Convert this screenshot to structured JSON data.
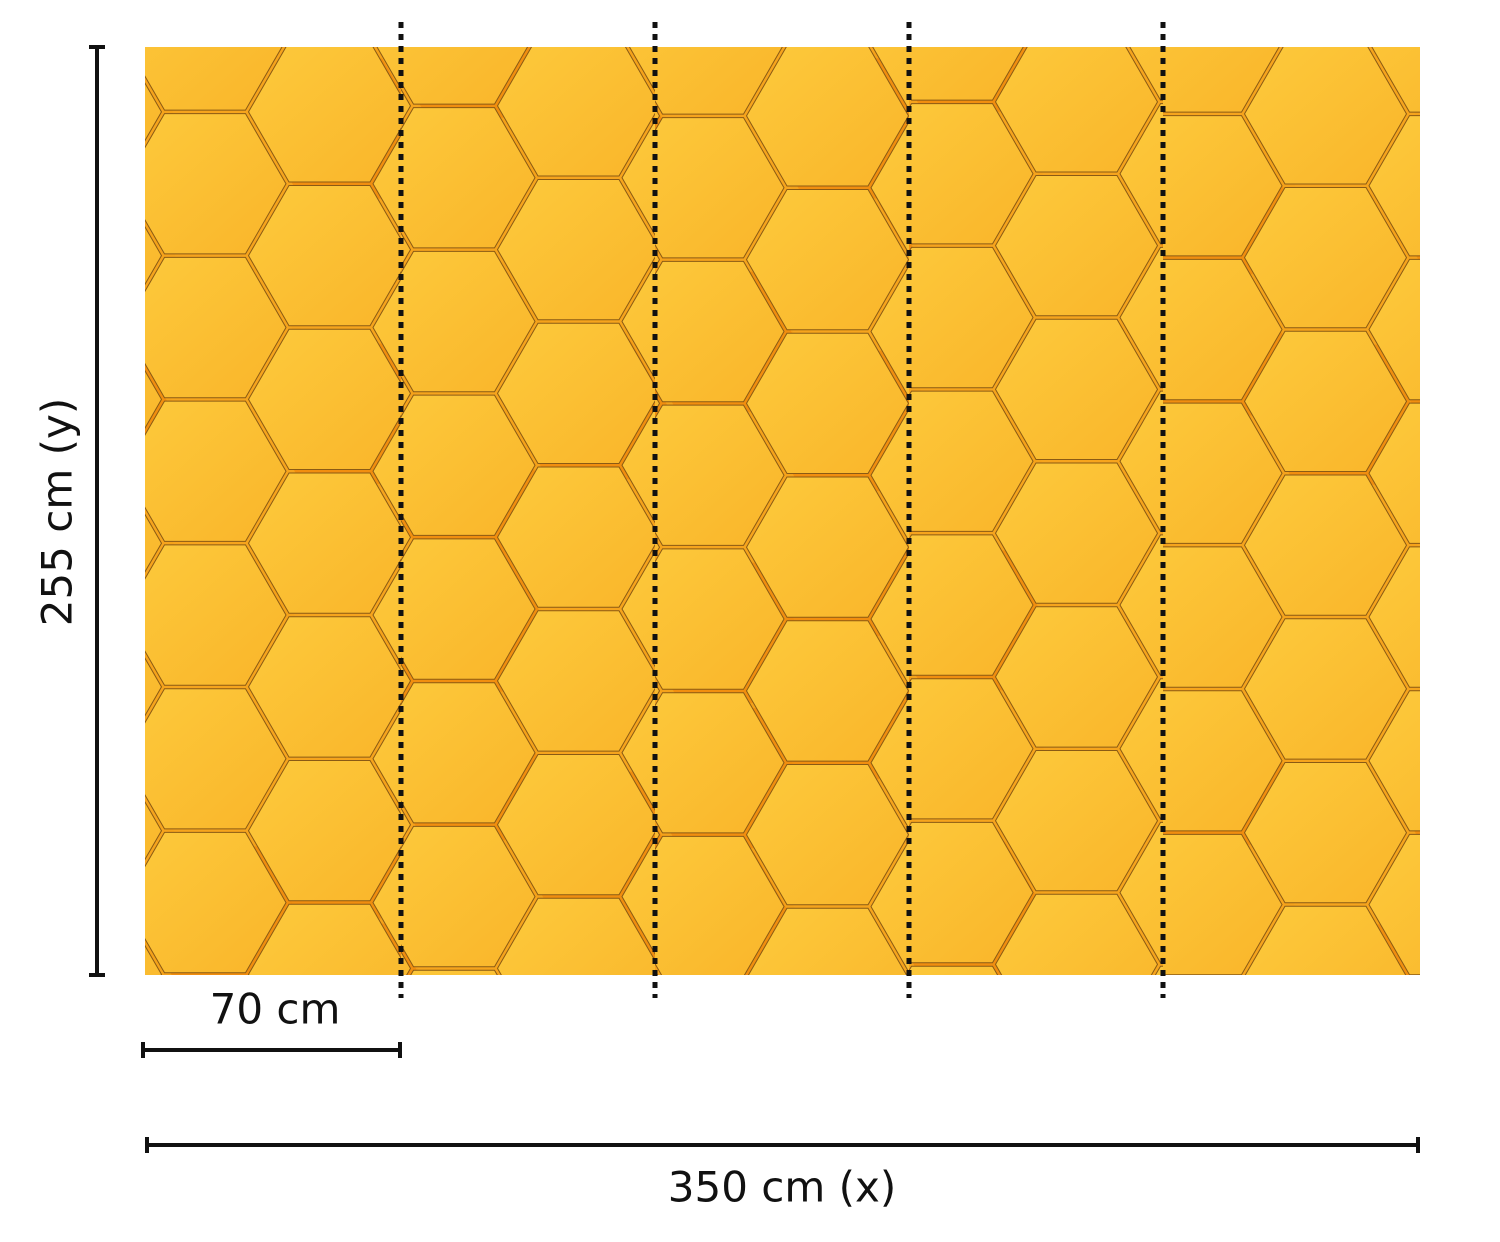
{
  "dimensions": {
    "height": {
      "label": "255 cm (y)"
    },
    "panel_width": {
      "label": "70 cm"
    },
    "width": {
      "label": "350 cm (x)"
    }
  }
}
